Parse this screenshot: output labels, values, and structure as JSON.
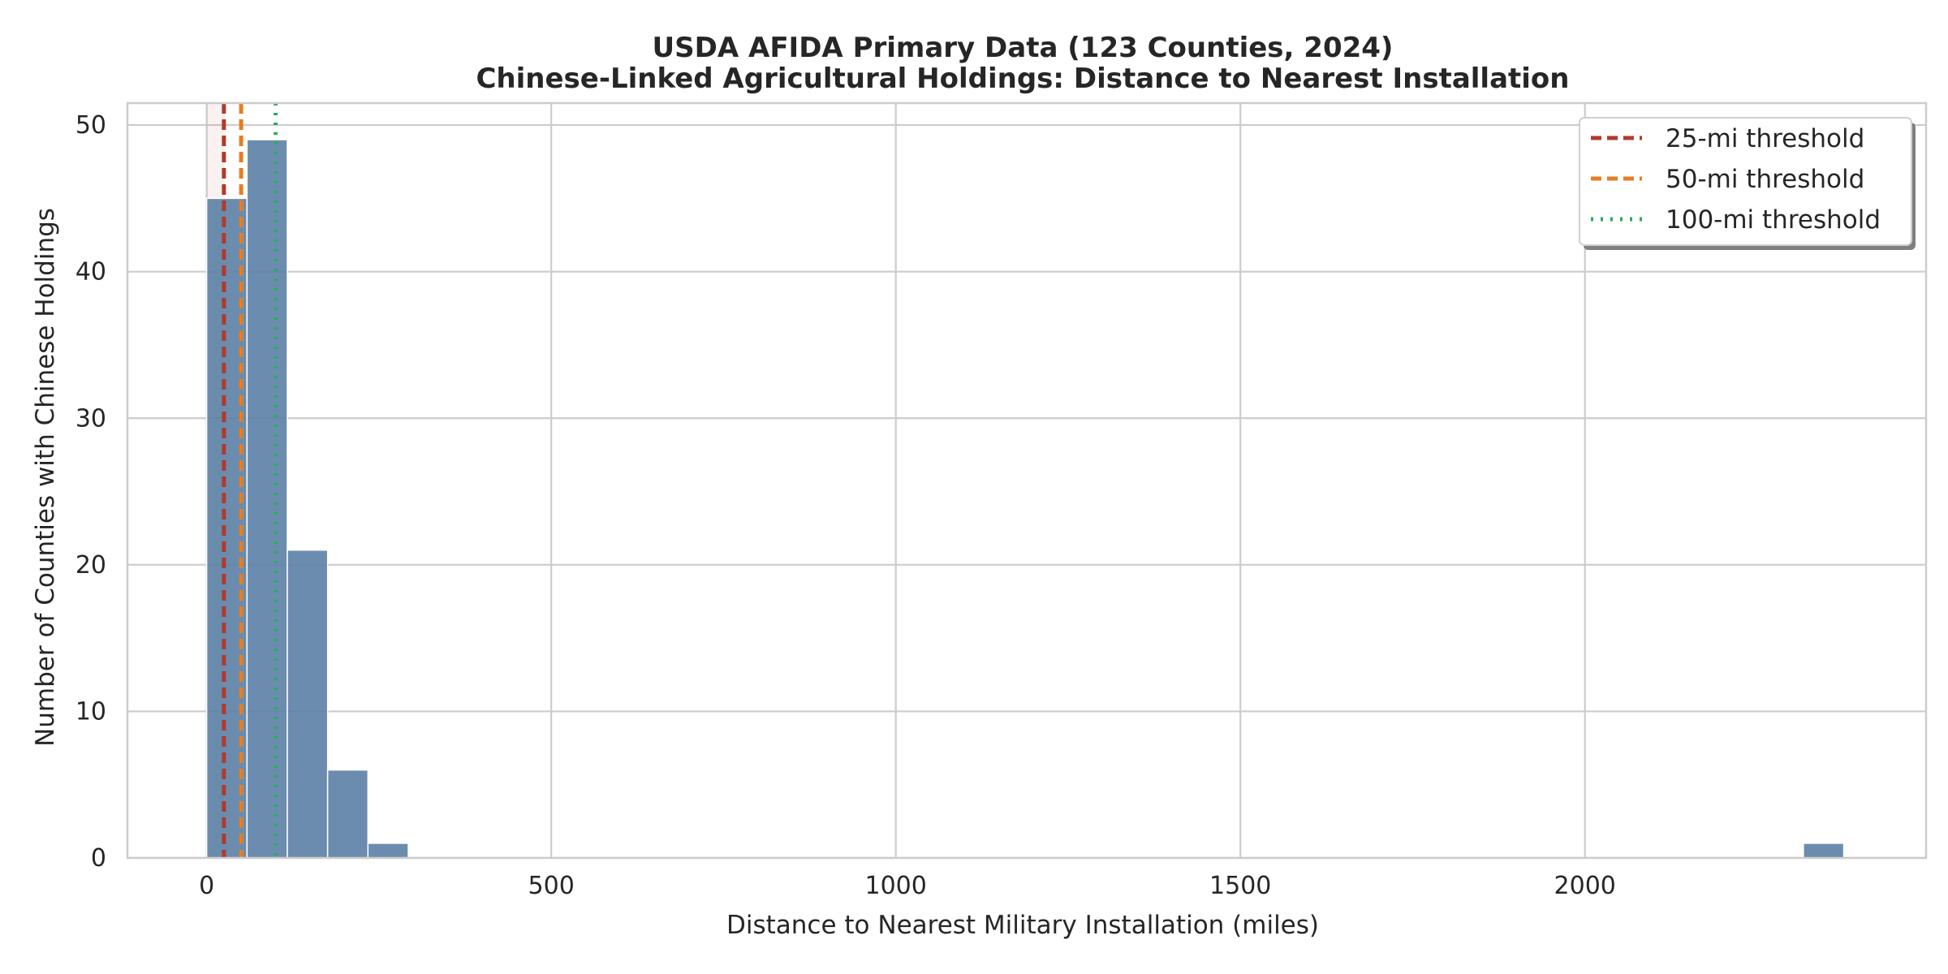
{
  "chart_data": {
    "type": "bar",
    "title": "USDA AFIDA Primary Data (123 Counties, 2024)",
    "subtitle": "Chinese-Linked Agricultural Holdings: Distance to Nearest Installation",
    "xlabel": "Distance to Nearest Military Installation (miles)",
    "ylabel": "Number of Counties with Chinese Holdings",
    "xlim": [
      -115,
      2495
    ],
    "ylim": [
      0,
      51.5
    ],
    "xticks": [
      0,
      500,
      1000,
      1500,
      2000
    ],
    "yticks": [
      0,
      10,
      20,
      30,
      40,
      50
    ],
    "grid": true,
    "bins": [
      {
        "x0": 0,
        "x1": 58.5,
        "count": 45
      },
      {
        "x0": 58.5,
        "x1": 117,
        "count": 49
      },
      {
        "x0": 117,
        "x1": 175.5,
        "count": 21
      },
      {
        "x0": 175.5,
        "x1": 234,
        "count": 6
      },
      {
        "x0": 234,
        "x1": 292.5,
        "count": 1
      },
      {
        "x0": 2317,
        "x1": 2375.5,
        "count": 1
      }
    ],
    "bar_color": "#5b80a5",
    "shaded_range": [
      0,
      25
    ],
    "thresholds": [
      {
        "name": "25-mi threshold",
        "value": 25,
        "color": "#b03a2e",
        "style": "dashed"
      },
      {
        "name": "50-mi threshold",
        "value": 50,
        "color": "#e67e22",
        "style": "dashed"
      },
      {
        "name": "100-mi threshold",
        "value": 100,
        "color": "#27ae60",
        "style": "dotted"
      }
    ],
    "legend_position": "top-right"
  }
}
